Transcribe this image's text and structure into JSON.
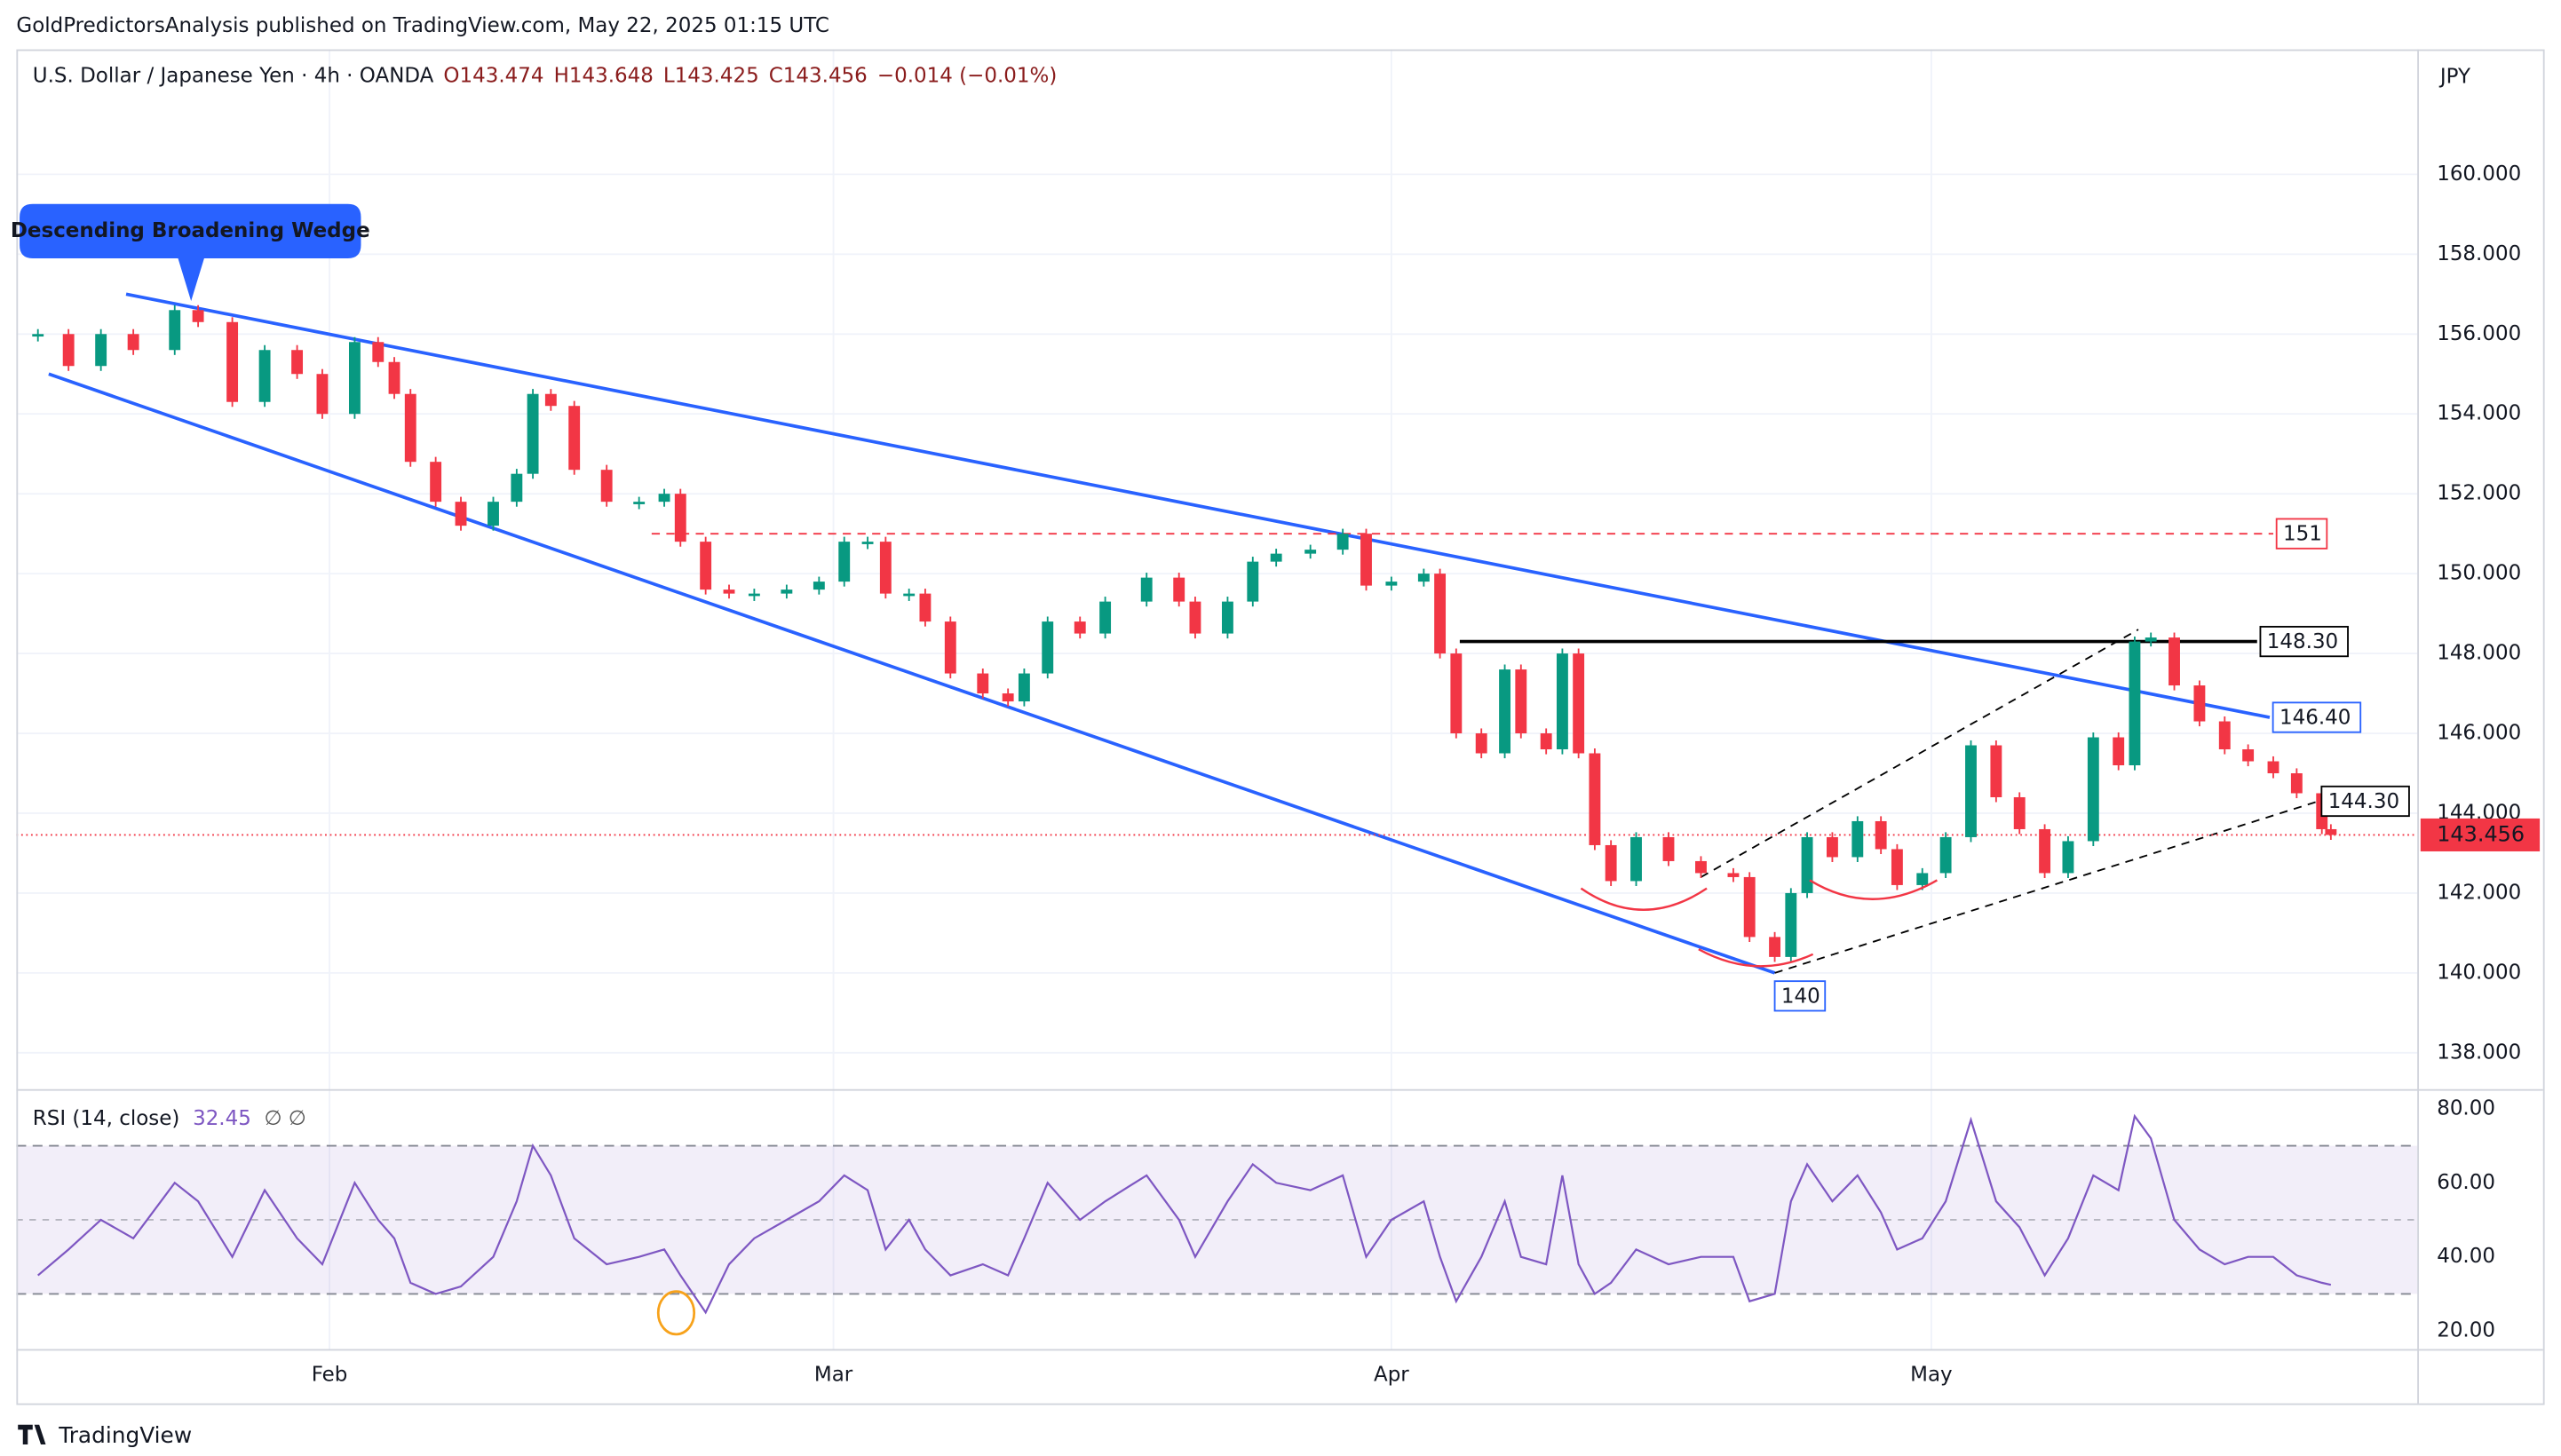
{
  "chart_data": {
    "type": "candlestick",
    "header": "GoldPredictorsAnalysis published on TradingView.com, May 22, 2025 01:15 UTC",
    "title": "U.S. Dollar / Japanese Yen · 4h · OANDA",
    "quote": [
      143.474,
      143.648,
      143.425,
      143.456,
      -0.014
    ],
    "quote_labels": [
      "O143.474",
      "H143.648",
      "L143.425",
      "C143.456",
      "−0.014 (−0.01%)"
    ],
    "currency": "JPY",
    "up_color": "#089981",
    "down_color": "#f23645",
    "x": [
      15.8,
      17.5,
      19.3,
      21.1,
      23.4,
      24.7,
      26.6,
      28.4,
      30.2,
      31.6,
      33.4,
      34.7,
      35.6,
      36.5,
      37.9,
      39.3,
      41.1,
      42.4,
      43.3,
      44.3,
      45.6,
      47.4,
      49.2,
      50.6,
      51.5,
      52.9,
      54.2,
      55.6,
      57.4,
      59.2,
      60.6,
      61.9,
      62.9,
      64.2,
      65.1,
      66.5,
      68.3,
      69.7,
      70.6,
      71.9,
      73.7,
      75.1,
      77.4,
      79.2,
      80.1,
      81.9,
      83.3,
      84.6,
      86.5,
      88.3,
      89.6,
      91.0,
      92.8,
      93.7,
      94.6,
      96.0,
      97.3,
      98.2,
      99.6,
      100.5,
      101.4,
      102.3,
      103.2,
      104.6,
      106.4,
      108.2,
      110.0,
      110.9,
      112.3,
      113.2,
      114.1,
      115.5,
      116.9,
      118.2,
      119.1,
      120.5,
      121.8,
      123.2,
      124.6,
      125.9,
      127.3,
      128.6,
      130.0,
      131.4,
      132.3,
      133.2,
      134.5,
      135.9,
      137.3,
      138.6,
      140.0,
      141.3,
      142.7,
      143.2
    ],
    "values": [
      156.0,
      155.2,
      156.0,
      155.6,
      156.6,
      156.3,
      154.3,
      155.6,
      155.0,
      154.0,
      155.8,
      155.3,
      154.5,
      152.8,
      151.8,
      151.2,
      151.8,
      152.5,
      154.5,
      154.2,
      152.6,
      151.8,
      151.8,
      152.0,
      150.8,
      149.6,
      149.5,
      149.5,
      149.6,
      149.8,
      150.8,
      150.8,
      149.5,
      149.5,
      148.8,
      147.5,
      147.0,
      146.8,
      147.5,
      148.8,
      148.5,
      149.3,
      149.9,
      149.3,
      148.5,
      149.3,
      150.3,
      150.5,
      150.6,
      151.0,
      149.7,
      149.8,
      150.0,
      148.0,
      146.0,
      145.5,
      147.6,
      146.0,
      145.6,
      148.0,
      145.5,
      143.2,
      142.3,
      143.4,
      142.8,
      142.5,
      142.4,
      140.9,
      140.4,
      142.0,
      143.4,
      142.9,
      143.8,
      143.1,
      142.2,
      142.5,
      143.4,
      145.7,
      144.4,
      143.6,
      142.5,
      143.3,
      145.9,
      145.2,
      148.3,
      148.4,
      147.2,
      146.3,
      145.6,
      145.3,
      145.0,
      144.5,
      143.6,
      143.456
    ],
    "xlim": [
      14.6,
      148.0
    ],
    "xticks": [
      {
        "value": 32,
        "label": "Feb"
      },
      {
        "value": 60,
        "label": "Mar"
      },
      {
        "value": 91,
        "label": "Apr"
      },
      {
        "value": 121,
        "label": "May"
      }
    ],
    "ylim": [
      137.09,
      163.13
    ],
    "yticks": [
      {
        "value": 138,
        "label": "138.000"
      },
      {
        "value": 140,
        "label": "140.000"
      },
      {
        "value": 142,
        "label": "142.000"
      },
      {
        "value": 144,
        "label": "144.000"
      },
      {
        "value": 146,
        "label": "146.000"
      },
      {
        "value": 148,
        "label": "148.000"
      },
      {
        "value": 150,
        "label": "150.000"
      },
      {
        "value": 152,
        "label": "152.000"
      },
      {
        "value": 154,
        "label": "154.000"
      },
      {
        "value": 156,
        "label": "156.000"
      },
      {
        "value": 158,
        "label": "158.000"
      },
      {
        "value": 160,
        "label": "160.000"
      }
    ],
    "last_price": {
      "value": 143.456,
      "label": "143.456"
    },
    "annotation": "Descending Broadening Wedge",
    "drawings": [
      {
        "from": [
          20.7,
          157.0
        ],
        "to": [
          139.8,
          146.4
        ],
        "label": "146.40",
        "color": "#2962ff",
        "dash": false
      },
      {
        "from": [
          16.4,
          155.0
        ],
        "to": [
          112.3,
          140
        ],
        "label": "140",
        "color": "#2962ff",
        "dash": false
      },
      {
        "from": [
          49.9,
          151
        ],
        "to": [
          140.0,
          151
        ],
        "label": "151",
        "color": "#f23645",
        "dash": true
      },
      {
        "from": [
          94.8,
          148.3
        ],
        "to": [
          139.1,
          148.3
        ],
        "label": "148.30",
        "color": "#000000",
        "dash": false
      },
      {
        "from": [
          112.3,
          140.0
        ],
        "to": [
          142.5,
          144.3
        ],
        "label": "144.30",
        "color": "#000000",
        "dash": true
      },
      {
        "from": [
          108.2,
          142.4
        ],
        "to": [
          132.5,
          148.6
        ],
        "color": "#000000",
        "dash": true
      }
    ],
    "rsi": {
      "label": "RSI (14, close)",
      "value": 32.45,
      "flags": "∅ ∅",
      "color": "#7e57c2",
      "values": [
        35,
        42,
        50,
        45,
        60,
        55,
        40,
        58,
        45,
        38,
        60,
        50,
        45,
        33,
        30,
        32,
        40,
        55,
        70,
        62,
        45,
        38,
        40,
        42,
        35,
        25,
        38,
        45,
        50,
        55,
        62,
        58,
        42,
        50,
        42,
        35,
        38,
        35,
        45,
        60,
        50,
        55,
        62,
        50,
        40,
        55,
        65,
        60,
        58,
        62,
        40,
        50,
        55,
        40,
        28,
        40,
        55,
        40,
        38,
        62,
        38,
        30,
        33,
        42,
        38,
        40,
        40,
        28,
        30,
        55,
        65,
        55,
        62,
        52,
        42,
        45,
        55,
        77,
        55,
        48,
        35,
        45,
        62,
        58,
        78,
        72,
        50,
        42,
        38,
        40,
        40,
        35,
        33,
        32.45
      ],
      "ylim": [
        15.1,
        85.3
      ],
      "bands": [
        30,
        50,
        70
      ],
      "yticks": [
        {
          "value": 20,
          "label": "20.00"
        },
        {
          "value": 40,
          "label": "40.00"
        },
        {
          "value": 60,
          "label": "60.00"
        },
        {
          "value": 80,
          "label": "80.00"
        }
      ]
    },
    "brand": "TradingView"
  }
}
